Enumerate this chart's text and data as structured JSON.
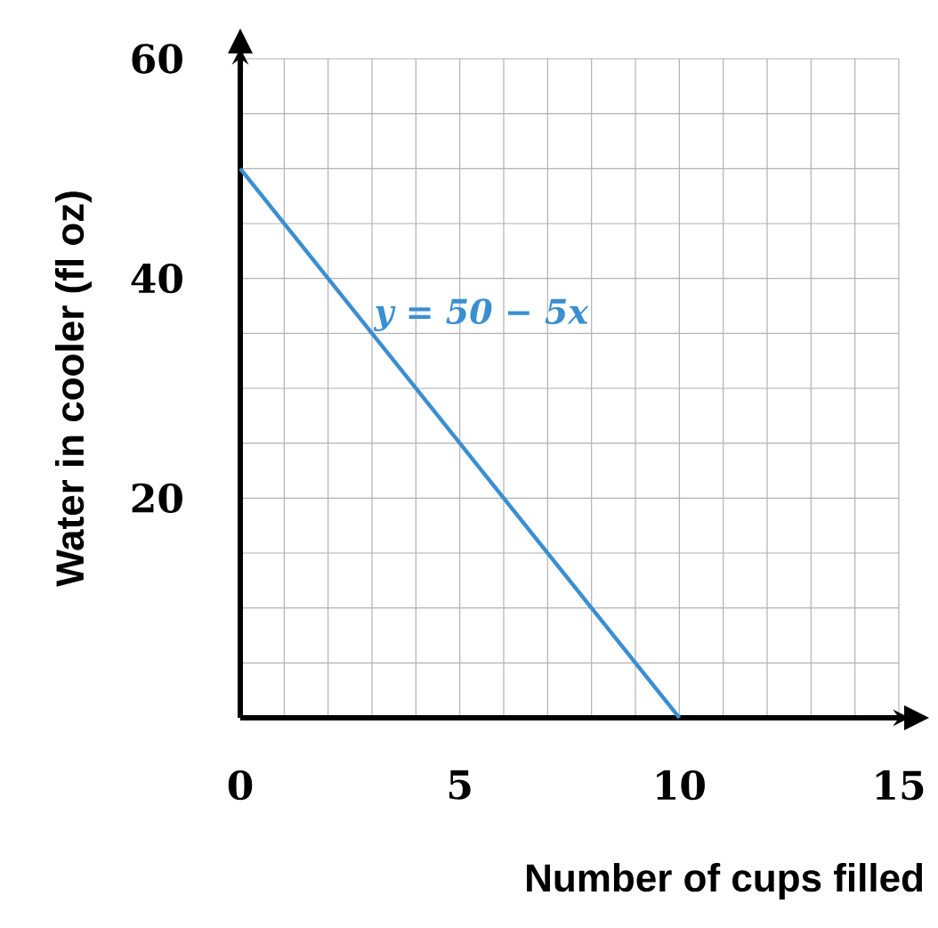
{
  "chart_data": {
    "type": "line",
    "xlabel": "Number of cups filled",
    "ylabel": "Water in cooler (fl oz)",
    "xlim": [
      0,
      15
    ],
    "ylim": [
      0,
      60
    ],
    "xticks": [
      0,
      {
        "value": 1,
        "label": null
      },
      {
        "value": 2,
        "label": null
      },
      {
        "value": 3,
        "label": null
      },
      {
        "value": 4,
        "label": null
      },
      5,
      {
        "value": 6,
        "label": null
      },
      {
        "value": 7,
        "label": null
      },
      {
        "value": 8,
        "label": null
      },
      {
        "value": 9,
        "label": null
      },
      10,
      {
        "value": 11,
        "label": null
      },
      {
        "value": 12,
        "label": null
      },
      {
        "value": 13,
        "label": null
      },
      {
        "value": 14,
        "label": null
      },
      15
    ],
    "yticks": [
      {
        "value": 5,
        "label": null
      },
      {
        "value": 10,
        "label": null
      },
      {
        "value": 15,
        "label": null
      },
      20,
      {
        "value": 25,
        "label": null
      },
      {
        "value": 30,
        "label": null
      },
      {
        "value": 35,
        "label": null
      },
      40,
      {
        "value": 45,
        "label": null
      },
      {
        "value": 50,
        "label": null
      },
      {
        "value": 55,
        "label": null
      },
      60
    ],
    "grid": true,
    "series": [
      {
        "name": "y = 50 − 5x",
        "color": "#3a8fd0",
        "x": [
          0,
          10
        ],
        "values": [
          50,
          0
        ]
      }
    ]
  }
}
